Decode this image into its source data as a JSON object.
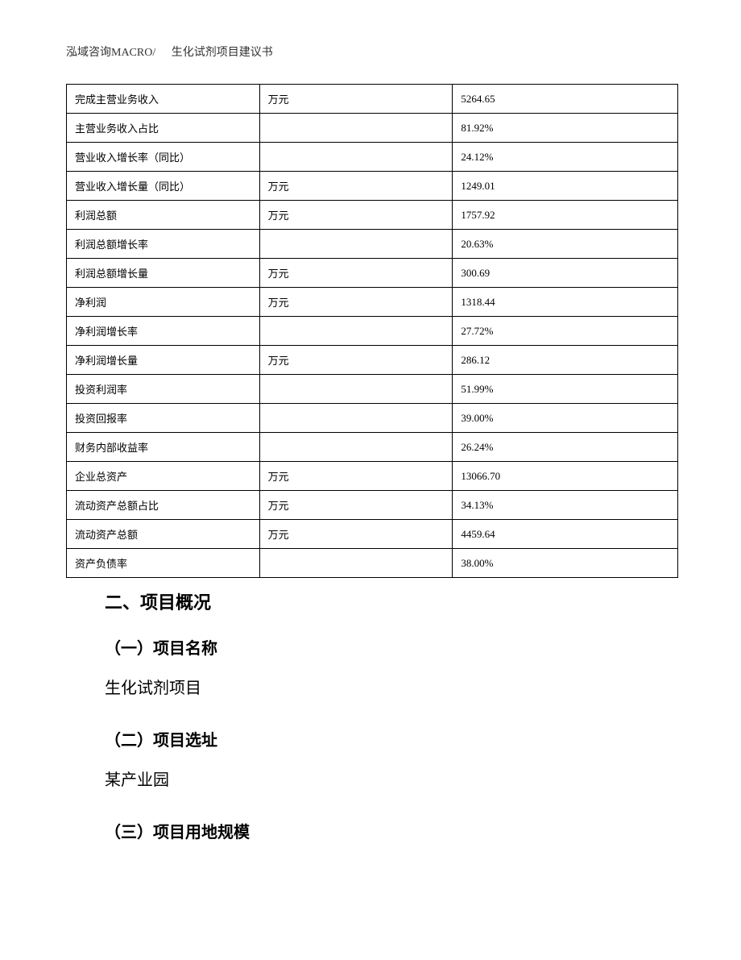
{
  "header": {
    "company": "泓域咨询",
    "macro": "MACRO/",
    "doc_title": "生化试剂项目建议书"
  },
  "table": {
    "rows": [
      {
        "label": "完成主营业务收入",
        "unit": "万元",
        "value": "5264.65"
      },
      {
        "label": "主营业务收入占比",
        "unit": "",
        "value": "81.92%"
      },
      {
        "label": "营业收入增长率（同比）",
        "unit": "",
        "value": "24.12%"
      },
      {
        "label": "营业收入增长量（同比）",
        "unit": "万元",
        "value": "1249.01"
      },
      {
        "label": "利润总额",
        "unit": "万元",
        "value": "1757.92"
      },
      {
        "label": "利润总额增长率",
        "unit": "",
        "value": "20.63%"
      },
      {
        "label": "利润总额增长量",
        "unit": "万元",
        "value": "300.69"
      },
      {
        "label": "净利润",
        "unit": "万元",
        "value": "1318.44"
      },
      {
        "label": "净利润增长率",
        "unit": "",
        "value": "27.72%"
      },
      {
        "label": "净利润增长量",
        "unit": "万元",
        "value": "286.12"
      },
      {
        "label": "投资利润率",
        "unit": "",
        "value": "51.99%"
      },
      {
        "label": "投资回报率",
        "unit": "",
        "value": "39.00%"
      },
      {
        "label": "财务内部收益率",
        "unit": "",
        "value": "26.24%"
      },
      {
        "label": "企业总资产",
        "unit": "万元",
        "value": "13066.70"
      },
      {
        "label": "流动资产总额占比",
        "unit": "万元",
        "value": "34.13%"
      },
      {
        "label": "流动资产总额",
        "unit": "万元",
        "value": "4459.64"
      },
      {
        "label": "资产负债率",
        "unit": "",
        "value": "38.00%"
      }
    ]
  },
  "content": {
    "section_heading": "二、项目概况",
    "subsection_1_heading": "（一）项目名称",
    "subsection_1_text": "生化试剂项目",
    "subsection_2_heading": "（二）项目选址",
    "subsection_2_text": "某产业园",
    "subsection_3_heading": "（三）项目用地规模"
  },
  "colors": {
    "text": "#000000",
    "border": "#000000",
    "background": "#ffffff",
    "header_text": "#333333"
  },
  "typography": {
    "header_fontsize": 14,
    "table_fontsize": 13,
    "heading_fontsize": 22,
    "subheading_fontsize": 20,
    "body_fontsize": 20
  }
}
